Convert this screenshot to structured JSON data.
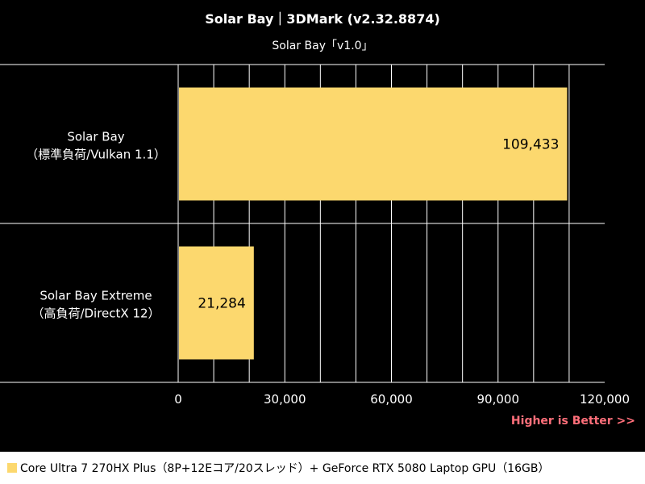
{
  "chart_data": {
    "type": "bar",
    "orientation": "horizontal",
    "title": "Solar Bay｜3DMark (v2.32.8874)",
    "subtitle": "Solar Bay「v1.0」",
    "categories": [
      [
        "Solar Bay",
        "（標準負荷/Vulkan 1.1）"
      ],
      [
        "Solar Bay Extreme",
        "（高負荷/DirectX 12）"
      ]
    ],
    "series": [
      {
        "name": "Core Ultra 7 270HX Plus（8P+12Eコア/20スレッド）+ GeForce RTX 5080 Laptop GPU（16GB）",
        "values": [
          109433,
          21284
        ],
        "color": "#fcd86e"
      }
    ],
    "data_labels": [
      "109,433",
      "21,284"
    ],
    "xlim": [
      0,
      120000
    ],
    "xticks": [
      0,
      30000,
      60000,
      90000,
      120000
    ],
    "xtick_labels": [
      "0",
      "30,000",
      "60,000",
      "90,000",
      "120,000"
    ],
    "grid": true,
    "annotation": "Higher is Better >>",
    "legend_position": "bottom"
  },
  "colors": {
    "background": "#000000",
    "plot_background": "#000000",
    "bar": "#fcd86e",
    "grid": "#ffffff",
    "annotation": "#ff6f7a"
  }
}
